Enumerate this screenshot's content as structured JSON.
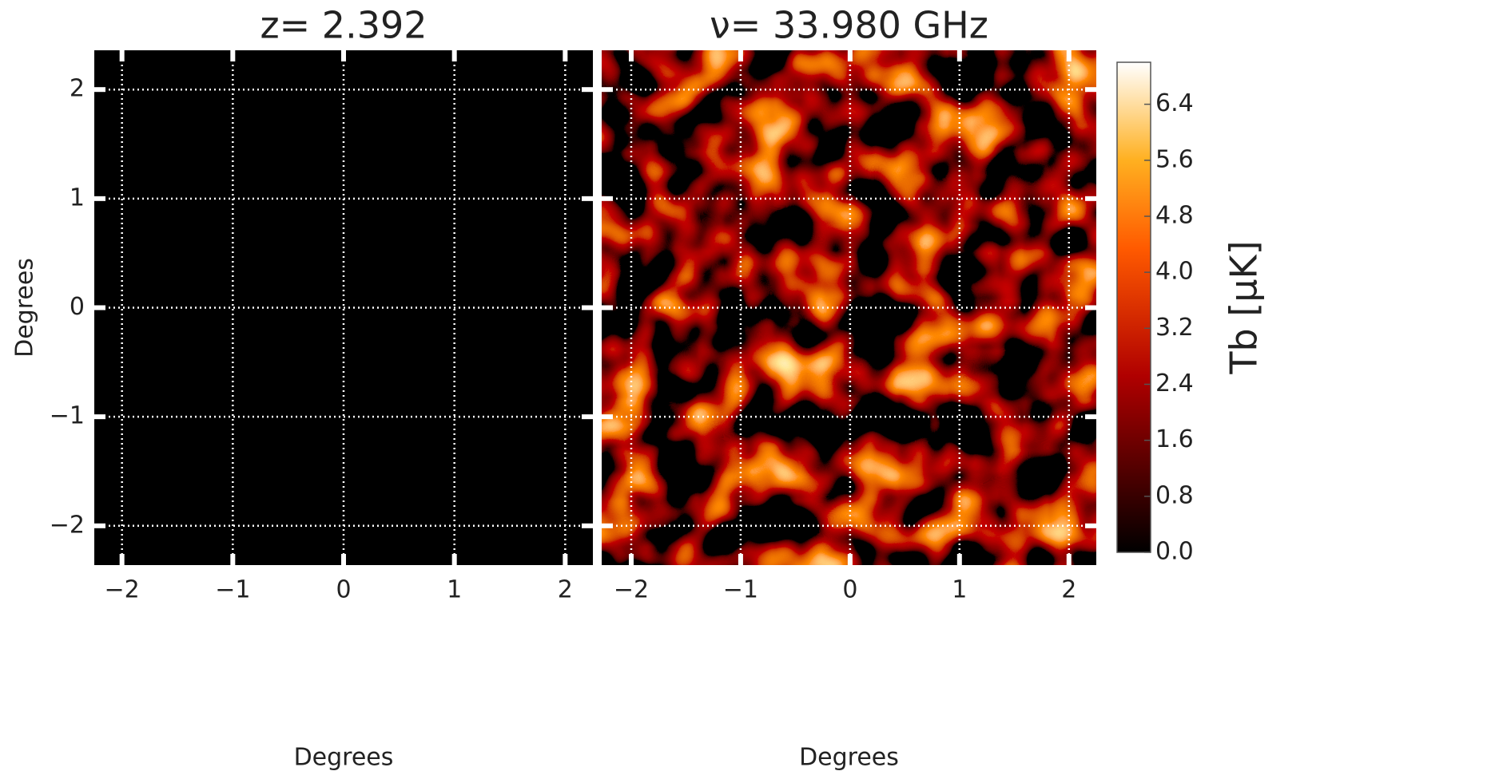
{
  "chart_data": [
    {
      "type": "image",
      "title": "z= 2.392",
      "xlabel": "Degrees",
      "ylabel": "Degrees",
      "xlim": [
        -2.25,
        2.25
      ],
      "ylim": [
        -2.36,
        2.36
      ],
      "xticks": [
        {
          "value": -2,
          "label": "−2"
        },
        {
          "value": -1,
          "label": "−1"
        },
        0,
        1,
        2
      ],
      "yticks": [
        {
          "value": -2,
          "label": "−2"
        },
        {
          "value": -1,
          "label": "−1"
        },
        0,
        1,
        2
      ],
      "grid": true
    },
    {
      "type": "image",
      "title": "ν= 33.980 GHz",
      "xlabel": "Degrees",
      "xlim": [
        -2.27,
        2.25
      ],
      "ylim": [
        -2.36,
        2.36
      ],
      "xticks": [
        {
          "value": -2,
          "label": "−2"
        },
        {
          "value": -1,
          "label": "−1"
        },
        0,
        1,
        2
      ],
      "yticks": [
        {
          "value": -2,
          "label": "−2"
        },
        {
          "value": -1,
          "label": "−1"
        },
        0,
        1,
        2
      ],
      "grid": true
    },
    {
      "type": "colorbar",
      "label": "Tb [μK]",
      "ylim": [
        0,
        7.0
      ],
      "yticks": [
        {
          "value": 0,
          "label": "0.0"
        },
        {
          "value": 0.8,
          "label": "0.8"
        },
        {
          "value": 1.6,
          "label": "1.6"
        },
        {
          "value": 2.4,
          "label": "2.4"
        },
        {
          "value": 3.2,
          "label": "3.2"
        },
        {
          "value": 4.0,
          "label": "4.0"
        },
        {
          "value": 4.8,
          "label": "4.8"
        },
        {
          "value": 5.6,
          "label": "5.6"
        },
        {
          "value": 6.4,
          "label": "6.4"
        }
      ]
    }
  ]
}
